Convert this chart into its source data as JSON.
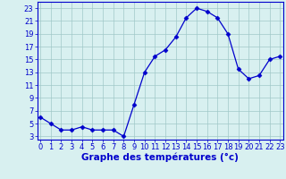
{
  "hours": [
    0,
    1,
    2,
    3,
    4,
    5,
    6,
    7,
    8,
    9,
    10,
    11,
    12,
    13,
    14,
    15,
    16,
    17,
    18,
    19,
    20,
    21,
    22,
    23
  ],
  "temps": [
    6.0,
    5.0,
    4.0,
    4.0,
    4.5,
    4.0,
    4.0,
    4.0,
    3.0,
    8.0,
    13.0,
    15.5,
    16.5,
    18.5,
    21.5,
    23.0,
    22.5,
    21.5,
    19.0,
    13.5,
    12.0,
    12.5,
    15.0,
    15.5
  ],
  "ylabel_ticks": [
    3,
    5,
    7,
    9,
    11,
    13,
    15,
    17,
    19,
    21,
    23
  ],
  "xlabel_ticks": [
    0,
    1,
    2,
    3,
    4,
    5,
    6,
    7,
    8,
    9,
    10,
    11,
    12,
    13,
    14,
    15,
    16,
    17,
    18,
    19,
    20,
    21,
    22,
    23
  ],
  "ylim": [
    2.5,
    24.0
  ],
  "xlim": [
    -0.3,
    23.3
  ],
  "line_color": "#0000cc",
  "marker": "D",
  "marker_size": 2.5,
  "bg_color": "#d8f0f0",
  "grid_color": "#a0c8c8",
  "xlabel": "Graphe des températures (°c)",
  "xlabel_fontsize": 7.5,
  "tick_fontsize": 6.0
}
